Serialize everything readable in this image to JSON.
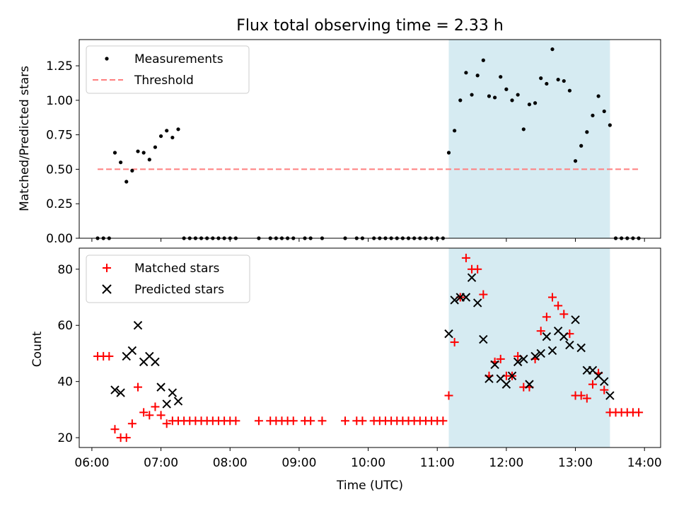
{
  "chart_data": [
    {
      "type": "scatter",
      "title": "Flux total observing time = 2.33 h",
      "xlabel": "",
      "ylabel": "Matched/Predicted stars",
      "ylim": [
        0,
        1.44
      ],
      "xlim": [
        "05:49",
        "14:14"
      ],
      "yticks": [
        "0.00",
        "0.25",
        "0.50",
        "0.75",
        "1.00",
        "1.25"
      ],
      "legend": {
        "placement": "top-left",
        "entries": [
          "Measurements",
          "Threshold"
        ]
      },
      "shaded_span": [
        "11:10",
        "13:30"
      ],
      "colors": {
        "measurements": "#000000",
        "threshold": "#ff7f7f",
        "span": "#add8e6"
      },
      "threshold": {
        "value": 0.5,
        "x_range": [
          "06:05",
          "13:55"
        ]
      },
      "series": [
        {
          "name": "Measurements",
          "points": [
            [
              "06:05",
              0
            ],
            [
              "06:10",
              0
            ],
            [
              "06:15",
              0
            ],
            [
              "06:20",
              0.62
            ],
            [
              "06:25",
              0.55
            ],
            [
              "06:30",
              0.41
            ],
            [
              "06:35",
              0.49
            ],
            [
              "06:40",
              0.63
            ],
            [
              "06:45",
              0.62
            ],
            [
              "06:50",
              0.57
            ],
            [
              "06:55",
              0.66
            ],
            [
              "07:00",
              0.74
            ],
            [
              "07:05",
              0.78
            ],
            [
              "07:10",
              0.73
            ],
            [
              "07:15",
              0.79
            ],
            [
              "07:20",
              0
            ],
            [
              "07:25",
              0
            ],
            [
              "07:30",
              0
            ],
            [
              "07:35",
              0
            ],
            [
              "07:40",
              0
            ],
            [
              "07:45",
              0
            ],
            [
              "07:50",
              0
            ],
            [
              "07:55",
              0
            ],
            [
              "08:00",
              0
            ],
            [
              "08:05",
              0
            ],
            [
              "08:25",
              0
            ],
            [
              "08:35",
              0
            ],
            [
              "08:40",
              0
            ],
            [
              "08:45",
              0
            ],
            [
              "08:50",
              0
            ],
            [
              "08:55",
              0
            ],
            [
              "09:05",
              0
            ],
            [
              "09:10",
              0
            ],
            [
              "09:20",
              0
            ],
            [
              "09:40",
              0
            ],
            [
              "09:50",
              0
            ],
            [
              "09:55",
              0
            ],
            [
              "10:05",
              0
            ],
            [
              "10:10",
              0
            ],
            [
              "10:15",
              0
            ],
            [
              "10:20",
              0
            ],
            [
              "10:25",
              0
            ],
            [
              "10:30",
              0
            ],
            [
              "10:35",
              0
            ],
            [
              "10:40",
              0
            ],
            [
              "10:45",
              0
            ],
            [
              "10:50",
              0
            ],
            [
              "10:55",
              0
            ],
            [
              "11:00",
              0
            ],
            [
              "11:05",
              0
            ],
            [
              "11:10",
              0.62
            ],
            [
              "11:15",
              0.78
            ],
            [
              "11:20",
              1.0
            ],
            [
              "11:25",
              1.2
            ],
            [
              "11:30",
              1.04
            ],
            [
              "11:35",
              1.18
            ],
            [
              "11:40",
              1.29
            ],
            [
              "11:45",
              1.03
            ],
            [
              "11:50",
              1.02
            ],
            [
              "11:55",
              1.17
            ],
            [
              "12:00",
              1.08
            ],
            [
              "12:05",
              1.0
            ],
            [
              "12:10",
              1.04
            ],
            [
              "12:15",
              0.79
            ],
            [
              "12:20",
              0.97
            ],
            [
              "12:25",
              0.98
            ],
            [
              "12:30",
              1.16
            ],
            [
              "12:35",
              1.12
            ],
            [
              "12:40",
              1.37
            ],
            [
              "12:45",
              1.15
            ],
            [
              "12:50",
              1.14
            ],
            [
              "12:55",
              1.07
            ],
            [
              "13:00",
              0.56
            ],
            [
              "13:05",
              0.67
            ],
            [
              "13:10",
              0.77
            ],
            [
              "13:15",
              0.89
            ],
            [
              "13:20",
              1.03
            ],
            [
              "13:25",
              0.92
            ],
            [
              "13:30",
              0.82
            ],
            [
              "13:35",
              0
            ],
            [
              "13:40",
              0
            ],
            [
              "13:45",
              0
            ],
            [
              "13:50",
              0
            ],
            [
              "13:55",
              0
            ]
          ]
        }
      ]
    },
    {
      "type": "scatter",
      "title": "",
      "xlabel": "Time (UTC)",
      "ylabel": "Count",
      "ylim": [
        16.5,
        87.5
      ],
      "xlim": [
        "05:49",
        "14:14"
      ],
      "xticks": [
        "06:00",
        "07:00",
        "08:00",
        "09:00",
        "10:00",
        "11:00",
        "12:00",
        "13:00",
        "14:00"
      ],
      "yticks": [
        "20",
        "40",
        "60",
        "80"
      ],
      "legend": {
        "placement": "top-left",
        "entries": [
          "Matched stars",
          "Predicted stars"
        ]
      },
      "shaded_span": [
        "11:10",
        "13:30"
      ],
      "colors": {
        "matched": "#ff0000",
        "predicted": "#000000",
        "span": "#add8e6"
      },
      "series": [
        {
          "name": "Matched stars",
          "points": [
            [
              "06:05",
              49
            ],
            [
              "06:10",
              49
            ],
            [
              "06:15",
              49
            ],
            [
              "06:20",
              23
            ],
            [
              "06:25",
              20
            ],
            [
              "06:30",
              20
            ],
            [
              "06:35",
              25
            ],
            [
              "06:40",
              38
            ],
            [
              "06:45",
              29
            ],
            [
              "06:50",
              28
            ],
            [
              "06:55",
              31
            ],
            [
              "07:00",
              28
            ],
            [
              "07:05",
              25
            ],
            [
              "07:10",
              26
            ],
            [
              "07:15",
              26
            ],
            [
              "07:20",
              26
            ],
            [
              "07:25",
              26
            ],
            [
              "07:30",
              26
            ],
            [
              "07:35",
              26
            ],
            [
              "07:40",
              26
            ],
            [
              "07:45",
              26
            ],
            [
              "07:50",
              26
            ],
            [
              "07:55",
              26
            ],
            [
              "08:00",
              26
            ],
            [
              "08:05",
              26
            ],
            [
              "08:25",
              26
            ],
            [
              "08:35",
              26
            ],
            [
              "08:40",
              26
            ],
            [
              "08:45",
              26
            ],
            [
              "08:50",
              26
            ],
            [
              "08:55",
              26
            ],
            [
              "09:05",
              26
            ],
            [
              "09:10",
              26
            ],
            [
              "09:20",
              26
            ],
            [
              "09:40",
              26
            ],
            [
              "09:50",
              26
            ],
            [
              "09:55",
              26
            ],
            [
              "10:05",
              26
            ],
            [
              "10:10",
              26
            ],
            [
              "10:15",
              26
            ],
            [
              "10:20",
              26
            ],
            [
              "10:25",
              26
            ],
            [
              "10:30",
              26
            ],
            [
              "10:35",
              26
            ],
            [
              "10:40",
              26
            ],
            [
              "10:45",
              26
            ],
            [
              "10:50",
              26
            ],
            [
              "10:55",
              26
            ],
            [
              "11:00",
              26
            ],
            [
              "11:05",
              26
            ],
            [
              "11:10",
              35
            ],
            [
              "11:15",
              54
            ],
            [
              "11:20",
              70
            ],
            [
              "11:25",
              84
            ],
            [
              "11:30",
              80
            ],
            [
              "11:35",
              80
            ],
            [
              "11:40",
              71
            ],
            [
              "11:45",
              42
            ],
            [
              "11:50",
              47
            ],
            [
              "11:55",
              48
            ],
            [
              "12:00",
              42
            ],
            [
              "12:05",
              42
            ],
            [
              "12:10",
              49
            ],
            [
              "12:15",
              38
            ],
            [
              "12:20",
              38
            ],
            [
              "12:25",
              48
            ],
            [
              "12:30",
              58
            ],
            [
              "12:35",
              63
            ],
            [
              "12:40",
              70
            ],
            [
              "12:45",
              67
            ],
            [
              "12:50",
              64
            ],
            [
              "12:55",
              57
            ],
            [
              "13:00",
              35
            ],
            [
              "13:05",
              35
            ],
            [
              "13:10",
              34
            ],
            [
              "13:15",
              39
            ],
            [
              "13:20",
              43
            ],
            [
              "13:25",
              37
            ],
            [
              "13:30",
              29
            ],
            [
              "13:35",
              29
            ],
            [
              "13:40",
              29
            ],
            [
              "13:45",
              29
            ],
            [
              "13:50",
              29
            ],
            [
              "13:55",
              29
            ]
          ]
        },
        {
          "name": "Predicted stars",
          "points": [
            [
              "06:20",
              37
            ],
            [
              "06:25",
              36
            ],
            [
              "06:30",
              49
            ],
            [
              "06:35",
              51
            ],
            [
              "06:40",
              60
            ],
            [
              "06:45",
              47
            ],
            [
              "06:50",
              49
            ],
            [
              "06:55",
              47
            ],
            [
              "07:00",
              38
            ],
            [
              "07:05",
              32
            ],
            [
              "07:10",
              36
            ],
            [
              "07:15",
              33
            ],
            [
              "11:10",
              57
            ],
            [
              "11:15",
              69
            ],
            [
              "11:20",
              70
            ],
            [
              "11:25",
              70
            ],
            [
              "11:30",
              77
            ],
            [
              "11:35",
              68
            ],
            [
              "11:40",
              55
            ],
            [
              "11:45",
              41
            ],
            [
              "11:50",
              46
            ],
            [
              "11:55",
              41
            ],
            [
              "12:00",
              39
            ],
            [
              "12:05",
              42
            ],
            [
              "12:10",
              47
            ],
            [
              "12:15",
              48
            ],
            [
              "12:20",
              39
            ],
            [
              "12:25",
              49
            ],
            [
              "12:30",
              50
            ],
            [
              "12:35",
              56
            ],
            [
              "12:40",
              51
            ],
            [
              "12:45",
              58
            ],
            [
              "12:50",
              56
            ],
            [
              "12:55",
              53
            ],
            [
              "13:00",
              62
            ],
            [
              "13:05",
              52
            ],
            [
              "13:10",
              44
            ],
            [
              "13:15",
              44
            ],
            [
              "13:20",
              42
            ],
            [
              "13:25",
              40
            ],
            [
              "13:30",
              35
            ]
          ]
        }
      ]
    }
  ]
}
